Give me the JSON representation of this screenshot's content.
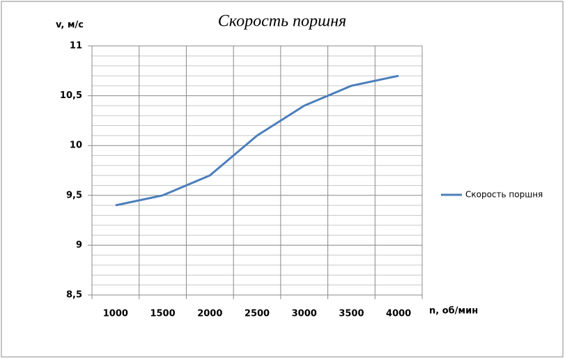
{
  "chart_data": {
    "type": "line",
    "title": "Скорость поршня",
    "y_label": "v, м/с",
    "x_label": "n, об/мин",
    "categories": [
      "1000",
      "1500",
      "2000",
      "2500",
      "3000",
      "3500",
      "4000"
    ],
    "series": [
      {
        "name": "Скорость поршня",
        "color": "#4a7ebb",
        "values": [
          9.4,
          9.5,
          9.7,
          10.1,
          10.4,
          10.6,
          10.7
        ]
      }
    ],
    "ylim": [
      8.5,
      11
    ],
    "yticks": [
      {
        "value": 8.5,
        "label": "8,5"
      },
      9,
      {
        "value": 9.5,
        "label": "9,5"
      },
      10,
      {
        "value": 10.5,
        "label": "10,5"
      },
      11
    ],
    "grid": true,
    "minor_divisions": 5,
    "legend": "right"
  }
}
